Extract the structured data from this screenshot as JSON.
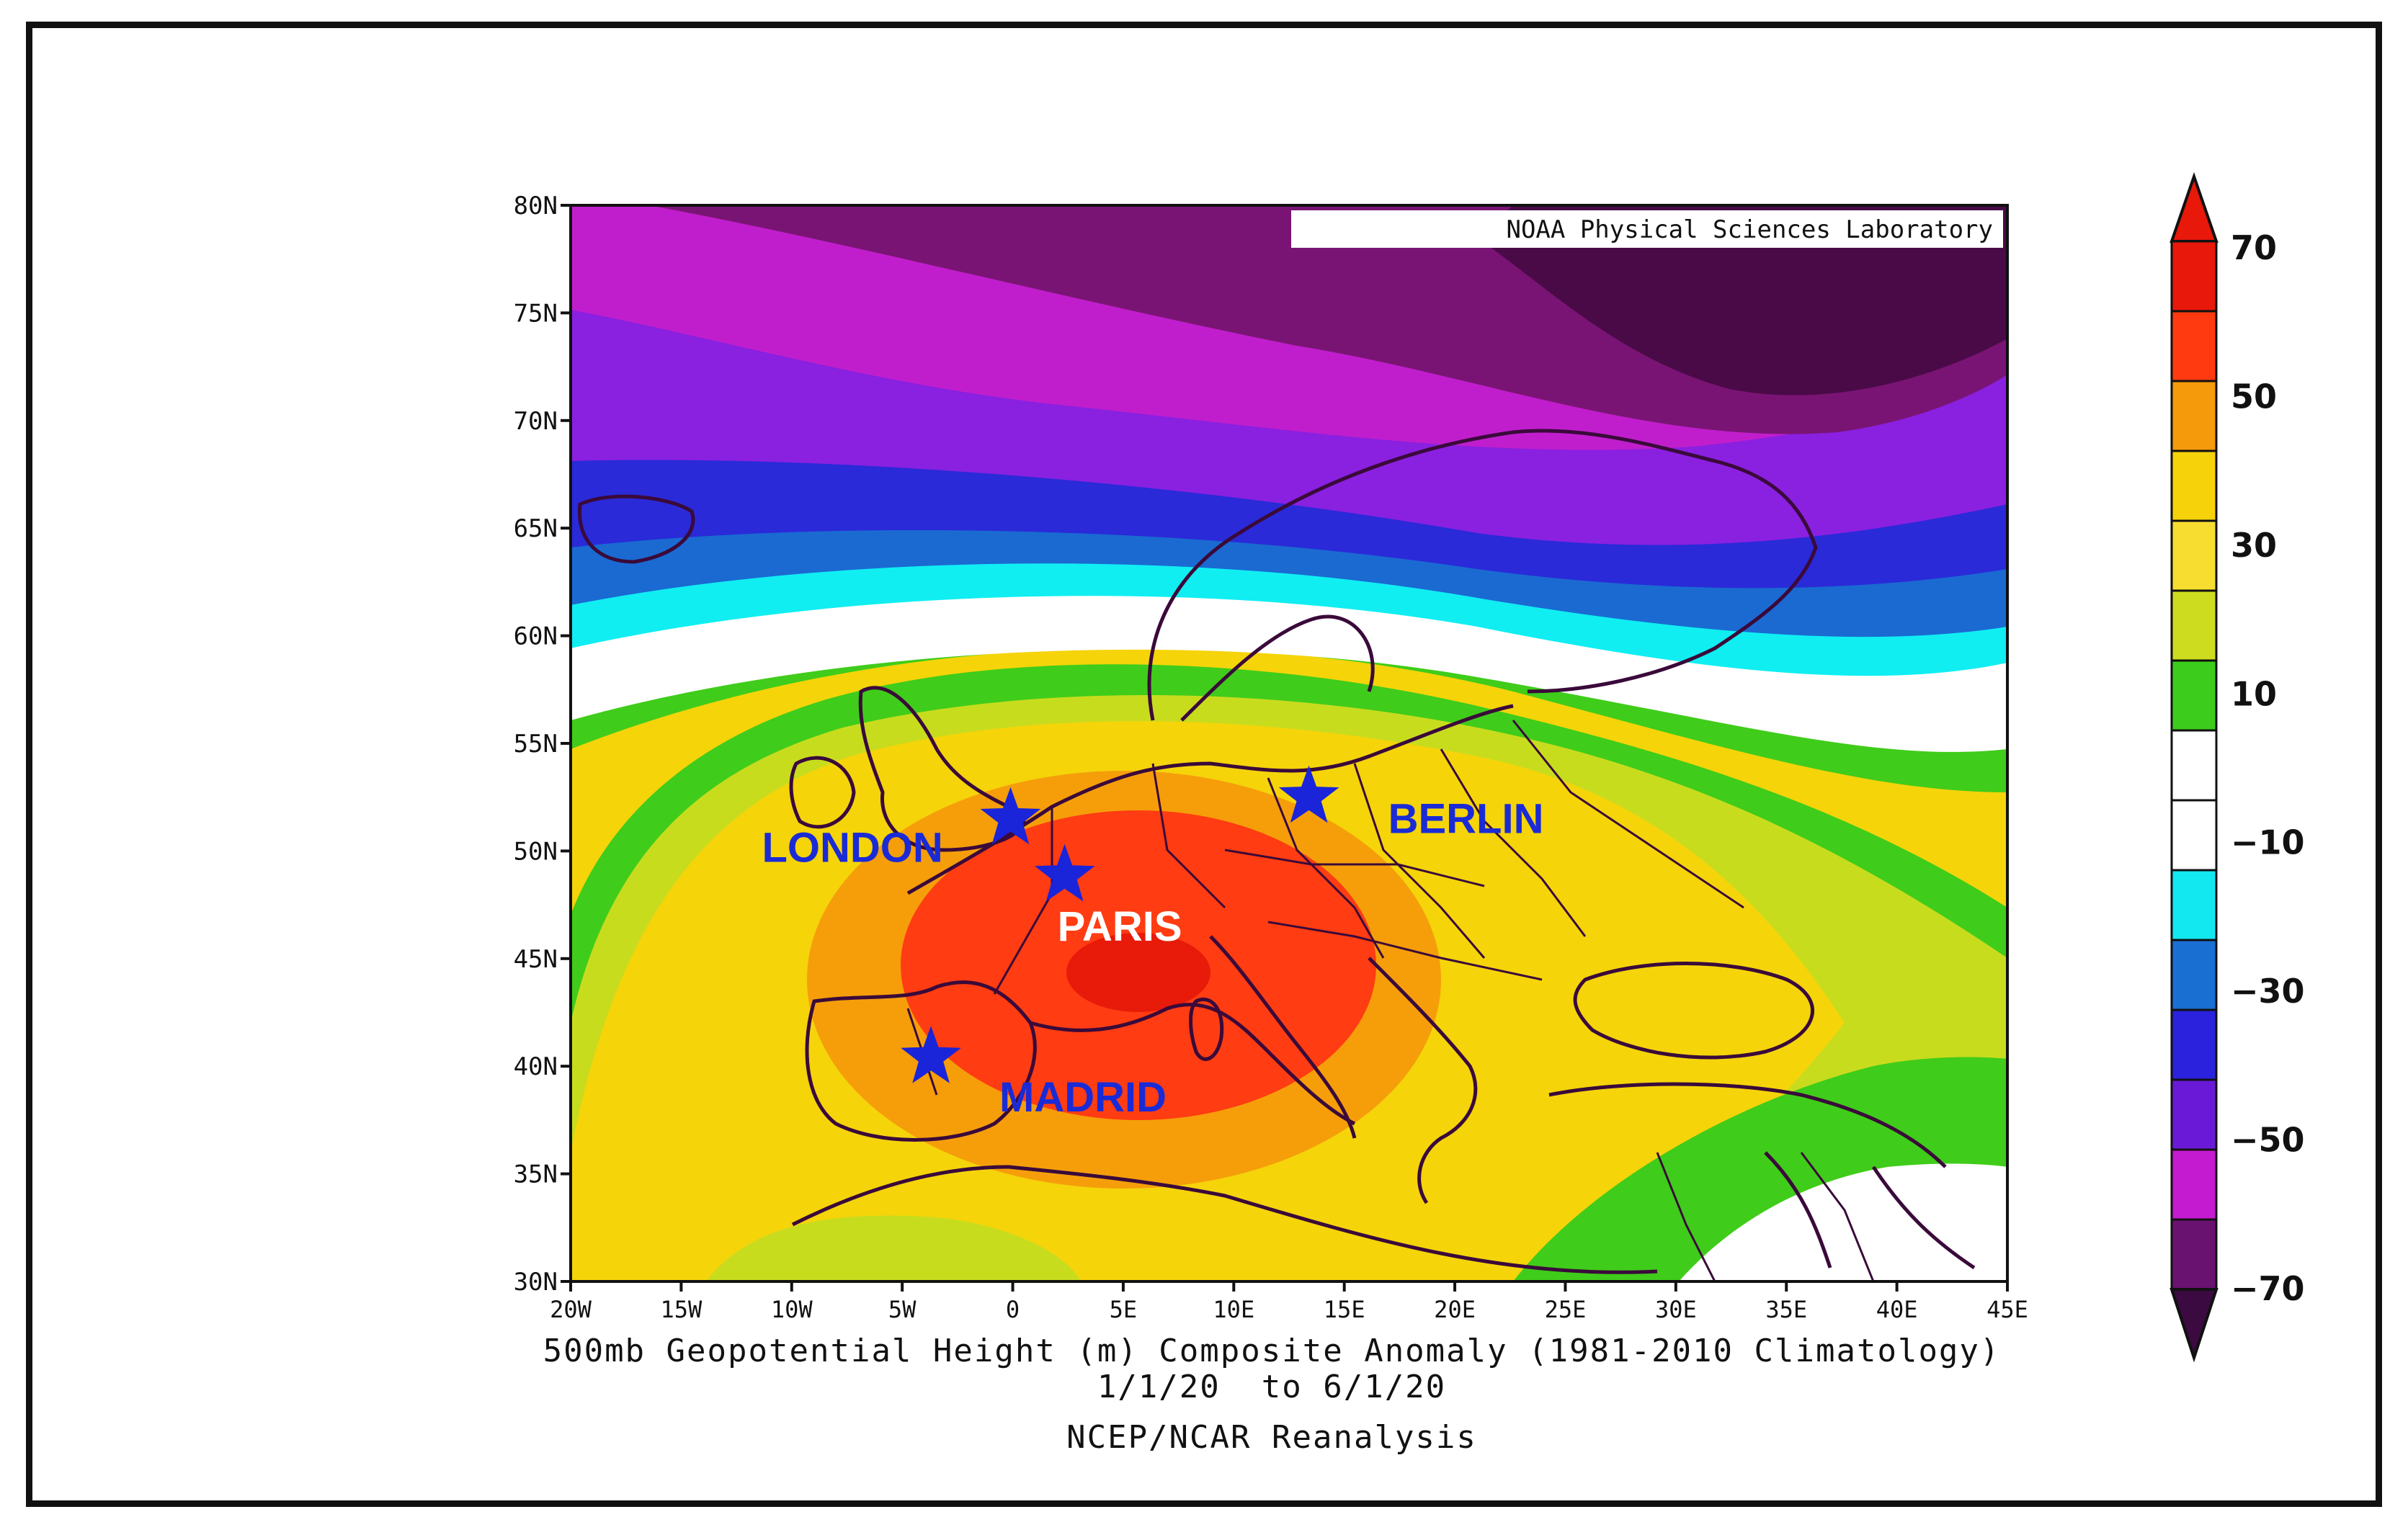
{
  "credit": "NOAA Physical Sciences Laboratory",
  "lat_ticks": [
    "80N",
    "75N",
    "70N",
    "65N",
    "60N",
    "55N",
    "50N",
    "45N",
    "40N",
    "35N",
    "30N"
  ],
  "lon_ticks": [
    "20W",
    "15W",
    "10W",
    "5W",
    "0",
    "5E",
    "10E",
    "15E",
    "20E",
    "25E",
    "30E",
    "35E",
    "40E",
    "45E"
  ],
  "captions": {
    "line1": "500mb Geopotential Height (m) Composite Anomaly (1981-2010 Climatology)",
    "line2": "1/1/20  to 6/1/20",
    "line3": "NCEP/NCAR Reanalysis"
  },
  "cities": [
    {
      "name": "LONDON",
      "lon": -0.1,
      "lat": 51.5,
      "label_color": "#1a2bd6"
    },
    {
      "name": "PARIS",
      "lon": 2.35,
      "lat": 48.85,
      "label_color": "#ffffff"
    },
    {
      "name": "MADRID",
      "lon": -3.7,
      "lat": 40.4,
      "label_color": "#1a2bd6"
    },
    {
      "name": "BERLIN",
      "lon": 13.4,
      "lat": 52.5,
      "label_color": "#1a2bd6"
    }
  ],
  "colorbar": {
    "labels": [
      "70",
      "50",
      "30",
      "10",
      "−10",
      "−30",
      "−50",
      "−70"
    ],
    "colors_top_to_bottom": [
      "#e8180a",
      "#ff3a10",
      "#f59a0a",
      "#f5d20a",
      "#f7dd30",
      "#cddc1e",
      "#3ccc1c",
      "#ffffff",
      "#ffffff",
      "#12e8f0",
      "#1a6fd2",
      "#2a22dc",
      "#6a1ad6",
      "#c41ad0",
      "#6a1270"
    ],
    "arrow_top": "#e8180a",
    "arrow_bottom": "#3a0a40"
  },
  "field_colors": {
    "deep_purple": "#4a0a48",
    "dark_purple": "#7a1474",
    "magenta": "#c01ecc",
    "violet": "#8a20e0",
    "blue": "#2a2ad8",
    "mid_blue": "#1a6ad2",
    "cyan": "#10eef2",
    "white": "#ffffff",
    "green": "#40cc1a",
    "lime": "#c8dc1e",
    "yellow": "#f5d40a",
    "orange": "#f59e0a",
    "red": "#ff3c12",
    "dark_red": "#e81a0a"
  }
}
